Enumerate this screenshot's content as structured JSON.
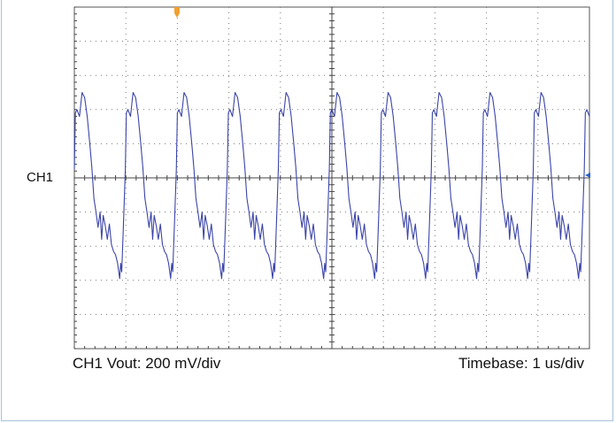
{
  "channel": {
    "name": "CH1"
  },
  "footer": {
    "scale_text": "CH1 Vout: 200 mV/div",
    "timebase_text": "Timebase: 1 us/div"
  },
  "colors": {
    "trace": "#3b44a8",
    "grid": "#7a7a7a",
    "trigger_marker": "#f0a030",
    "level_marker": "#2a5fc6",
    "frame": "#a7c1df"
  },
  "chart_data": {
    "type": "line",
    "xlabel": "",
    "ylabel": "",
    "x_divisions": 10,
    "y_divisions": 10,
    "x_unit": "us",
    "y_unit": "mV",
    "volts_per_div_mV": 200,
    "time_per_div_us": 1,
    "grid": true,
    "xlim": [
      0,
      10
    ],
    "ylim": [
      -1000,
      1000
    ],
    "period_us": 0.99,
    "cycles_shown": 10,
    "series": [
      {
        "waveform_one_period": {
          "t_us": [
            0.0,
            0.02,
            0.05,
            0.1,
            0.15,
            0.2,
            0.25,
            0.3,
            0.34,
            0.38,
            0.42,
            0.46,
            0.5,
            0.53,
            0.56,
            0.6,
            0.64,
            0.68,
            0.72,
            0.76,
            0.8,
            0.84,
            0.88,
            0.9,
            0.92,
            0.95,
            0.99
          ],
          "v_mV": [
            50,
            380,
            400,
            360,
            500,
            470,
            360,
            200,
            60,
            -120,
            -200,
            -290,
            -200,
            -360,
            -220,
            -280,
            -360,
            -270,
            -390,
            -430,
            -450,
            -500,
            -590,
            -500,
            -550,
            -300,
            50
          ]
        }
      }
    ]
  }
}
